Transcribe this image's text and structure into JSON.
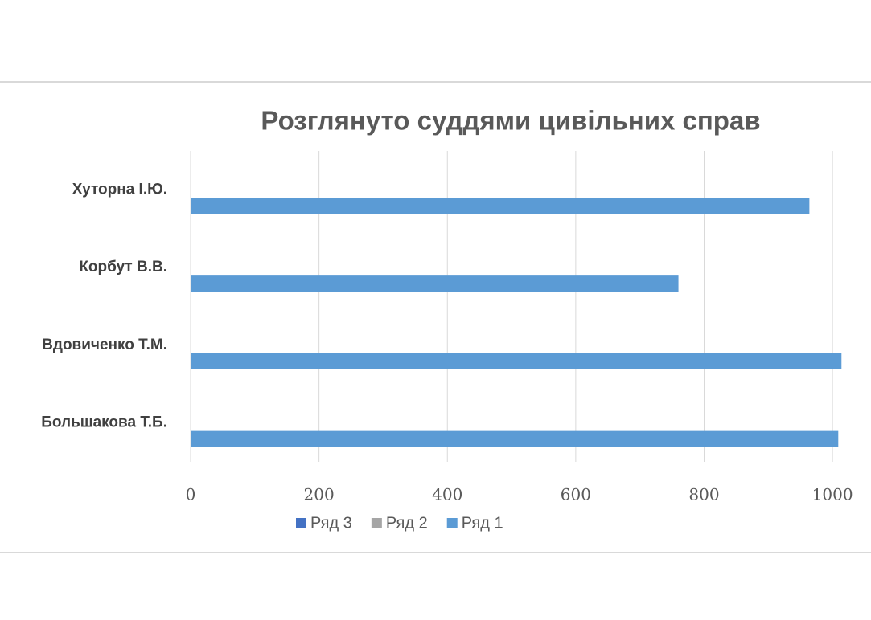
{
  "chart_data": {
    "type": "hbar",
    "title": "Розглянуто суддями цивільних справ",
    "categories": [
      "Большакова Т.Б.",
      "Вдовиченко Т.М.",
      "Корбут В.В.",
      "Хуторна І.Ю."
    ],
    "series": [
      {
        "name": "Ряд 1",
        "color": "#5b9bd5",
        "values": [
          1009,
          1014,
          760,
          964
        ]
      },
      {
        "name": "Ряд 2",
        "color": "#a5a5a5",
        "values": [
          null,
          null,
          null,
          null
        ]
      },
      {
        "name": "Ряд 3",
        "color": "#4472c4",
        "values": [
          null,
          null,
          null,
          null
        ]
      }
    ],
    "xlim": [
      0,
      1060
    ],
    "xticks": [
      0,
      200,
      400,
      600,
      800,
      1000
    ],
    "grid": true,
    "legend": "bottom"
  }
}
